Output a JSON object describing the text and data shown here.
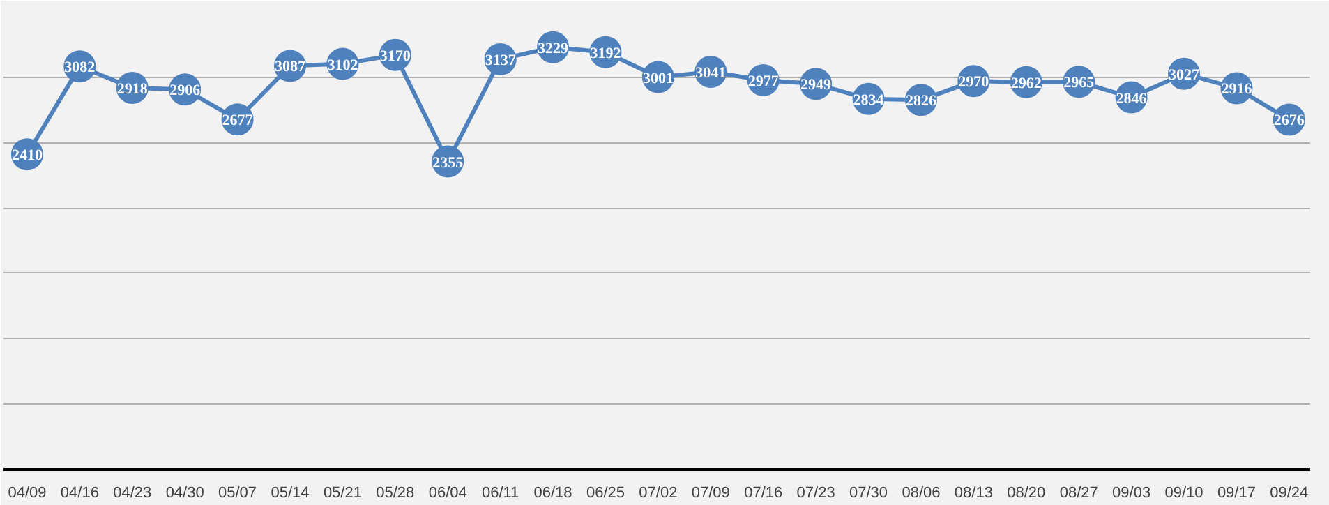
{
  "chart_data": {
    "type": "line",
    "categories": [
      "04/09",
      "04/16",
      "04/23",
      "04/30",
      "05/07",
      "05/14",
      "05/21",
      "05/28",
      "06/04",
      "06/11",
      "06/18",
      "06/25",
      "07/02",
      "07/09",
      "07/16",
      "07/23",
      "07/30",
      "08/06",
      "08/13",
      "08/20",
      "08/27",
      "09/03",
      "09/10",
      "09/17",
      "09/24"
    ],
    "series": [
      {
        "color": "#4f81bd",
        "values": [
          2410,
          3082,
          2918,
          2906,
          2677,
          3087,
          3102,
          3170,
          2355,
          3137,
          3229,
          3192,
          3001,
          3041,
          2977,
          2949,
          2834,
          2826,
          2970,
          2962,
          2965,
          2846,
          3027,
          2916,
          2676
        ]
      }
    ],
    "ylim": [
      0,
      3500
    ],
    "yticks": [
      {
        "value": 0,
        "label": null
      },
      {
        "value": 500,
        "label": null
      },
      {
        "value": 1000,
        "label": null
      },
      {
        "value": 1500,
        "label": null
      },
      {
        "value": 2000,
        "label": null
      },
      {
        "value": 2500,
        "label": null
      },
      {
        "value": 3000,
        "label": null
      },
      {
        "value": 3500,
        "label": null
      }
    ],
    "grid": "y",
    "marker": "circle",
    "line_style": "solid",
    "data_labels": true,
    "tick_labels": "x"
  }
}
